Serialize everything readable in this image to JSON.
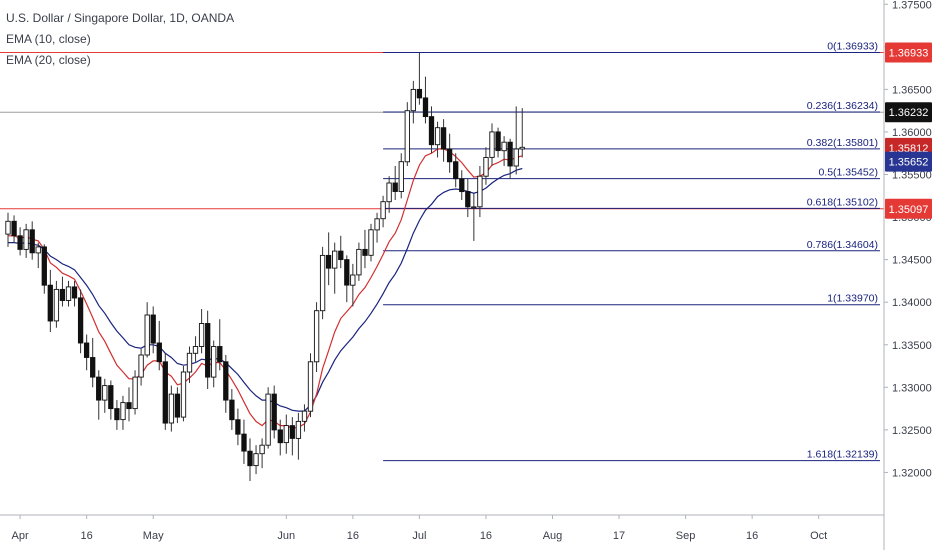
{
  "legend": {
    "symbol": "U.S. Dollar / Singapore Dollar, 1D, OANDA",
    "ema10": "EMA (10, close)",
    "ema20": "EMA (20, close)"
  },
  "colors": {
    "up": "#ffffff",
    "down": "#111111",
    "wick": "#333333",
    "ema10": "#d32f2f",
    "ema20": "#1a237e",
    "fib": "#1a237e",
    "fib_level": "#1a237e",
    "price": "#111111",
    "ema10_badge": "#c62828",
    "ema20_badge": "#283593",
    "hline": "#e53935",
    "axis_text": "#3a3e4a"
  },
  "chart_data": {
    "type": "candlestick",
    "y_axis": {
      "min": 1.315,
      "max": 1.3755,
      "ticks": [
        "1.37500",
        "1.37000",
        "1.36500",
        "1.36000",
        "1.35500",
        "1.35000",
        "1.34500",
        "1.34000",
        "1.33500",
        "1.33000",
        "1.32500",
        "1.32000"
      ]
    },
    "x_axis": {
      "ticks": [
        {
          "label": "Apr",
          "index": 2
        },
        {
          "label": "16",
          "index": 13
        },
        {
          "label": "May",
          "index": 24
        },
        {
          "label": "Jun",
          "index": 46
        },
        {
          "label": "16",
          "index": 57
        },
        {
          "label": "Jul",
          "index": 68
        },
        {
          "label": "16",
          "index": 79
        },
        {
          "label": "Aug",
          "index": 90
        },
        {
          "label": "17",
          "index": 101
        },
        {
          "label": "Sep",
          "index": 112
        },
        {
          "label": "16",
          "index": 123
        },
        {
          "label": "Oct",
          "index": 134
        }
      ]
    },
    "candles": [
      {
        "o": 1.348,
        "h": 1.3505,
        "l": 1.3465,
        "c": 1.3495
      },
      {
        "o": 1.3495,
        "h": 1.3502,
        "l": 1.347,
        "c": 1.3478
      },
      {
        "o": 1.3478,
        "h": 1.3488,
        "l": 1.3455,
        "c": 1.3462
      },
      {
        "o": 1.3462,
        "h": 1.3492,
        "l": 1.3452,
        "c": 1.3485
      },
      {
        "o": 1.3485,
        "h": 1.3495,
        "l": 1.345,
        "c": 1.3458
      },
      {
        "o": 1.3458,
        "h": 1.347,
        "l": 1.344,
        "c": 1.3465
      },
      {
        "o": 1.3465,
        "h": 1.3468,
        "l": 1.341,
        "c": 1.342
      },
      {
        "o": 1.342,
        "h": 1.3438,
        "l": 1.3365,
        "c": 1.3378
      },
      {
        "o": 1.3378,
        "h": 1.3425,
        "l": 1.337,
        "c": 1.3415
      },
      {
        "o": 1.3415,
        "h": 1.343,
        "l": 1.3395,
        "c": 1.3402
      },
      {
        "o": 1.3402,
        "h": 1.3425,
        "l": 1.3395,
        "c": 1.3418
      },
      {
        "o": 1.3418,
        "h": 1.3425,
        "l": 1.3395,
        "c": 1.3405
      },
      {
        "o": 1.3405,
        "h": 1.3415,
        "l": 1.334,
        "c": 1.3352
      },
      {
        "o": 1.3352,
        "h": 1.3362,
        "l": 1.332,
        "c": 1.3335
      },
      {
        "o": 1.3335,
        "h": 1.3358,
        "l": 1.33,
        "c": 1.3312
      },
      {
        "o": 1.3312,
        "h": 1.332,
        "l": 1.3262,
        "c": 1.3285
      },
      {
        "o": 1.3285,
        "h": 1.331,
        "l": 1.327,
        "c": 1.3302
      },
      {
        "o": 1.3302,
        "h": 1.3308,
        "l": 1.3262,
        "c": 1.3275
      },
      {
        "o": 1.3275,
        "h": 1.3285,
        "l": 1.325,
        "c": 1.3262
      },
      {
        "o": 1.3262,
        "h": 1.329,
        "l": 1.325,
        "c": 1.3282
      },
      {
        "o": 1.3282,
        "h": 1.33,
        "l": 1.326,
        "c": 1.3275
      },
      {
        "o": 1.3275,
        "h": 1.332,
        "l": 1.3268,
        "c": 1.3312
      },
      {
        "o": 1.3312,
        "h": 1.3345,
        "l": 1.3302,
        "c": 1.3338
      },
      {
        "o": 1.3338,
        "h": 1.34,
        "l": 1.3335,
        "c": 1.3385
      },
      {
        "o": 1.3385,
        "h": 1.3395,
        "l": 1.334,
        "c": 1.3352
      },
      {
        "o": 1.3352,
        "h": 1.3378,
        "l": 1.332,
        "c": 1.333
      },
      {
        "o": 1.333,
        "h": 1.334,
        "l": 1.325,
        "c": 1.3258
      },
      {
        "o": 1.3258,
        "h": 1.3302,
        "l": 1.3248,
        "c": 1.3292
      },
      {
        "o": 1.3292,
        "h": 1.33,
        "l": 1.3258,
        "c": 1.3265
      },
      {
        "o": 1.3265,
        "h": 1.3325,
        "l": 1.326,
        "c": 1.3318
      },
      {
        "o": 1.3318,
        "h": 1.3348,
        "l": 1.3305,
        "c": 1.334
      },
      {
        "o": 1.334,
        "h": 1.336,
        "l": 1.333,
        "c": 1.3348
      },
      {
        "o": 1.3348,
        "h": 1.3392,
        "l": 1.334,
        "c": 1.3375
      },
      {
        "o": 1.3375,
        "h": 1.339,
        "l": 1.3298,
        "c": 1.3312
      },
      {
        "o": 1.3312,
        "h": 1.3355,
        "l": 1.33,
        "c": 1.3348
      },
      {
        "o": 1.3348,
        "h": 1.338,
        "l": 1.332,
        "c": 1.333
      },
      {
        "o": 1.333,
        "h": 1.3338,
        "l": 1.327,
        "c": 1.3285
      },
      {
        "o": 1.3285,
        "h": 1.3298,
        "l": 1.325,
        "c": 1.3262
      },
      {
        "o": 1.3262,
        "h": 1.3275,
        "l": 1.3232,
        "c": 1.3245
      },
      {
        "o": 1.3245,
        "h": 1.3262,
        "l": 1.321,
        "c": 1.3225
      },
      {
        "o": 1.3225,
        "h": 1.324,
        "l": 1.319,
        "c": 1.3208
      },
      {
        "o": 1.3208,
        "h": 1.3232,
        "l": 1.3198,
        "c": 1.3222
      },
      {
        "o": 1.3222,
        "h": 1.324,
        "l": 1.3205,
        "c": 1.3232
      },
      {
        "o": 1.3232,
        "h": 1.33,
        "l": 1.3228,
        "c": 1.3292
      },
      {
        "o": 1.3292,
        "h": 1.3302,
        "l": 1.324,
        "c": 1.325
      },
      {
        "o": 1.325,
        "h": 1.3262,
        "l": 1.322,
        "c": 1.3235
      },
      {
        "o": 1.3235,
        "h": 1.3268,
        "l": 1.3222,
        "c": 1.3255
      },
      {
        "o": 1.3255,
        "h": 1.3265,
        "l": 1.322,
        "c": 1.324
      },
      {
        "o": 1.324,
        "h": 1.327,
        "l": 1.3215,
        "c": 1.326
      },
      {
        "o": 1.326,
        "h": 1.328,
        "l": 1.3248,
        "c": 1.3272
      },
      {
        "o": 1.3272,
        "h": 1.334,
        "l": 1.3265,
        "c": 1.333
      },
      {
        "o": 1.333,
        "h": 1.34,
        "l": 1.3318,
        "c": 1.339
      },
      {
        "o": 1.339,
        "h": 1.3465,
        "l": 1.338,
        "c": 1.3455
      },
      {
        "o": 1.3455,
        "h": 1.3482,
        "l": 1.342,
        "c": 1.344
      },
      {
        "o": 1.344,
        "h": 1.347,
        "l": 1.341,
        "c": 1.346
      },
      {
        "o": 1.346,
        "h": 1.3478,
        "l": 1.344,
        "c": 1.345
      },
      {
        "o": 1.345,
        "h": 1.3455,
        "l": 1.34,
        "c": 1.342
      },
      {
        "o": 1.342,
        "h": 1.3445,
        "l": 1.3395,
        "c": 1.3432
      },
      {
        "o": 1.3432,
        "h": 1.347,
        "l": 1.3425,
        "c": 1.3462
      },
      {
        "o": 1.3462,
        "h": 1.3485,
        "l": 1.344,
        "c": 1.3455
      },
      {
        "o": 1.3455,
        "h": 1.3492,
        "l": 1.3448,
        "c": 1.3485
      },
      {
        "o": 1.3485,
        "h": 1.3505,
        "l": 1.347,
        "c": 1.3498
      },
      {
        "o": 1.3498,
        "h": 1.3525,
        "l": 1.3488,
        "c": 1.3518
      },
      {
        "o": 1.3518,
        "h": 1.3548,
        "l": 1.3505,
        "c": 1.354
      },
      {
        "o": 1.354,
        "h": 1.356,
        "l": 1.352,
        "c": 1.353
      },
      {
        "o": 1.353,
        "h": 1.3575,
        "l": 1.3522,
        "c": 1.3565
      },
      {
        "o": 1.3565,
        "h": 1.3635,
        "l": 1.356,
        "c": 1.3625
      },
      {
        "o": 1.3625,
        "h": 1.366,
        "l": 1.361,
        "c": 1.365
      },
      {
        "o": 1.365,
        "h": 1.3693,
        "l": 1.3632,
        "c": 1.364
      },
      {
        "o": 1.364,
        "h": 1.3665,
        "l": 1.361,
        "c": 1.3618
      },
      {
        "o": 1.3618,
        "h": 1.363,
        "l": 1.3575,
        "c": 1.3585
      },
      {
        "o": 1.3585,
        "h": 1.3612,
        "l": 1.357,
        "c": 1.3605
      },
      {
        "o": 1.3605,
        "h": 1.3615,
        "l": 1.3565,
        "c": 1.358
      },
      {
        "o": 1.358,
        "h": 1.3598,
        "l": 1.3552,
        "c": 1.3565
      },
      {
        "o": 1.3565,
        "h": 1.3575,
        "l": 1.3535,
        "c": 1.3545
      },
      {
        "o": 1.3545,
        "h": 1.3555,
        "l": 1.352,
        "c": 1.353
      },
      {
        "o": 1.353,
        "h": 1.3545,
        "l": 1.35,
        "c": 1.3512
      },
      {
        "o": 1.3512,
        "h": 1.3528,
        "l": 1.3472,
        "c": 1.3512
      },
      {
        "o": 1.3512,
        "h": 1.356,
        "l": 1.35,
        "c": 1.3548
      },
      {
        "o": 1.3548,
        "h": 1.3582,
        "l": 1.3538,
        "c": 1.357
      },
      {
        "o": 1.357,
        "h": 1.361,
        "l": 1.356,
        "c": 1.36
      },
      {
        "o": 1.36,
        "h": 1.3605,
        "l": 1.357,
        "c": 1.3578
      },
      {
        "o": 1.3578,
        "h": 1.3595,
        "l": 1.356,
        "c": 1.3588
      },
      {
        "o": 1.3588,
        "h": 1.3592,
        "l": 1.3545,
        "c": 1.356
      },
      {
        "o": 1.356,
        "h": 1.363,
        "l": 1.355,
        "c": 1.358
      },
      {
        "o": 1.358,
        "h": 1.3628,
        "l": 1.357,
        "c": 1.3582
      }
    ],
    "ema10": [
      1.3478,
      1.3478,
      1.3475,
      1.3477,
      1.3474,
      1.3472,
      1.3462,
      1.3446,
      1.3441,
      1.3434,
      1.3431,
      1.3427,
      1.3413,
      1.3398,
      1.3382,
      1.3365,
      1.3354,
      1.334,
      1.3326,
      1.3318,
      1.331,
      1.331,
      1.3315,
      1.3326,
      1.3331,
      1.3331,
      1.3318,
      1.3313,
      1.3303,
      1.3305,
      1.3311,
      1.3318,
      1.3328,
      1.3325,
      1.3329,
      1.3329,
      1.332,
      1.3309,
      1.3297,
      1.3283,
      1.3269,
      1.326,
      1.3255,
      1.3262,
      1.326,
      1.3255,
      1.3255,
      1.3252,
      1.3253,
      1.3257,
      1.3271,
      1.3292,
      1.3322,
      1.3343,
      1.3365,
      1.3381,
      1.3389,
      1.3397,
      1.3409,
      1.3417,
      1.3429,
      1.3442,
      1.3456,
      1.3471,
      1.3481,
      1.3497,
      1.352,
      1.3543,
      1.3561,
      1.3572,
      1.3575,
      1.358,
      1.358,
      1.3577,
      1.3571,
      1.3564,
      1.3555,
      1.3547,
      1.3548,
      1.3552,
      1.3561,
      1.3564,
      1.3568,
      1.3567,
      1.357,
      1.3572
    ],
    "ema20": [
      1.347,
      1.347,
      1.3469,
      1.347,
      1.3468,
      1.3467,
      1.3462,
      1.3454,
      1.345,
      1.3445,
      1.3442,
      1.3438,
      1.3429,
      1.342,
      1.3409,
      1.3396,
      1.3387,
      1.3376,
      1.3366,
      1.3358,
      1.335,
      1.3347,
      1.3346,
      1.335,
      1.335,
      1.3348,
      1.334,
      1.3335,
      1.3328,
      1.3326,
      1.3327,
      1.3329,
      1.3333,
      1.3332,
      1.3334,
      1.3333,
      1.3329,
      1.3322,
      1.3315,
      1.3306,
      1.3297,
      1.329,
      1.3285,
      1.3285,
      1.3282,
      1.3278,
      1.3276,
      1.3273,
      1.3272,
      1.3272,
      1.3279,
      1.329,
      1.3306,
      1.3318,
      1.3332,
      1.3343,
      1.3351,
      1.3359,
      1.3369,
      1.3377,
      1.3387,
      1.3398,
      1.341,
      1.3423,
      1.3433,
      1.3446,
      1.3463,
      1.3481,
      1.3496,
      1.3508,
      1.3515,
      1.3524,
      1.3529,
      1.3532,
      1.3533,
      1.3532,
      1.353,
      1.3528,
      1.353,
      1.3534,
      1.354,
      1.3545,
      1.3549,
      1.3551,
      1.3555,
      1.3557
    ],
    "fibonacci": [
      {
        "label": "0(1.36933)",
        "value": 1.36933
      },
      {
        "label": "0.236(1.36234)",
        "value": 1.36234
      },
      {
        "label": "0.382(1.35801)",
        "value": 1.35801
      },
      {
        "label": "0.5(1.35452)",
        "value": 1.35452
      },
      {
        "label": "0.618(1.35102)",
        "value": 1.35102
      },
      {
        "label": "0.786(1.34604)",
        "value": 1.34604
      },
      {
        "label": "1(1.33970)",
        "value": 1.3397
      },
      {
        "label": "1.618(1.32139)",
        "value": 1.32139
      }
    ],
    "fib_start_index": 62,
    "horizontal_lines": [
      {
        "value": 1.36933,
        "color": "#e53935"
      },
      {
        "value": 1.35097,
        "color": "#e53935"
      },
      {
        "value": 1.36232,
        "color": "#9e9e9e"
      }
    ],
    "price_badges": [
      {
        "label": "1.36933",
        "value": 1.36933,
        "color": "#e53935"
      },
      {
        "label": "1.36232",
        "value": 1.36232,
        "color": "#111111"
      },
      {
        "label": "1.35812",
        "value": 1.35812,
        "color": "#c62828"
      },
      {
        "label": "1.35652",
        "value": 1.35652,
        "color": "#283593"
      },
      {
        "label": "1.35097",
        "value": 1.35097,
        "color": "#e53935"
      }
    ]
  }
}
